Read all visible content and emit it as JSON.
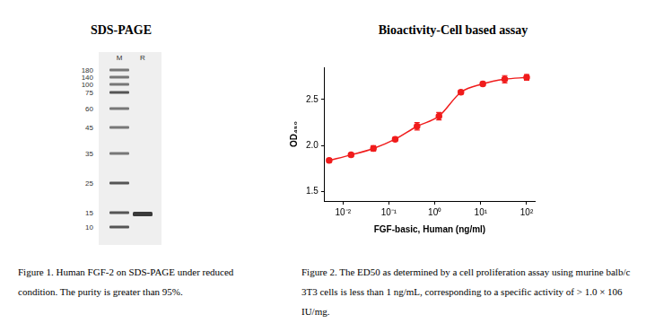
{
  "left_panel": {
    "title": "SDS-PAGE",
    "lanes": [
      "M",
      "R"
    ],
    "marker_labels": [
      180,
      140,
      100,
      75,
      60,
      45,
      35,
      25,
      15,
      10
    ],
    "caption": "Figure 1. Human FGF-2 on SDS-PAGE under reduced condition. The purity is greater than 95%."
  },
  "chart_data": {
    "type": "line",
    "title": "Bioactivity-Cell based assay",
    "x_label": "FGF-basic, Human (ng/ml)",
    "y_label": "OD₄₅₀",
    "x": [
      0.005,
      0.015,
      0.046,
      0.137,
      0.41,
      1.23,
      3.7,
      11.1,
      33.3,
      100
    ],
    "values": [
      1.84,
      1.9,
      1.97,
      2.07,
      2.21,
      2.32,
      2.58,
      2.67,
      2.72,
      2.74
    ],
    "errors": [
      0.02,
      0.02,
      0.03,
      0.02,
      0.04,
      0.04,
      0.02,
      0.02,
      0.04,
      0.03
    ],
    "color": "#f01c1c",
    "marker": "circle",
    "log": "x",
    "grid": false,
    "xlim": [
      0.004,
      150
    ],
    "xticks": [
      {
        "value": 0.01,
        "label": "10⁻²"
      },
      {
        "value": 0.1,
        "label": "10⁻¹"
      },
      {
        "value": 1,
        "label": "10⁰"
      },
      {
        "value": 10,
        "label": "10¹"
      },
      {
        "value": 100,
        "label": "10²"
      }
    ],
    "ylim": [
      1.4,
      2.85
    ],
    "yticks": [
      1.5,
      {
        "value": 2,
        "label": "2.0"
      },
      2.5
    ],
    "caption": "Figure 2. The ED50 as determined by a cell proliferation assay using murine balb/c 3T3 cells is less than 1 ng/mL, corresponding to a specific activity of > 1.0 × 106 IU/mg."
  }
}
